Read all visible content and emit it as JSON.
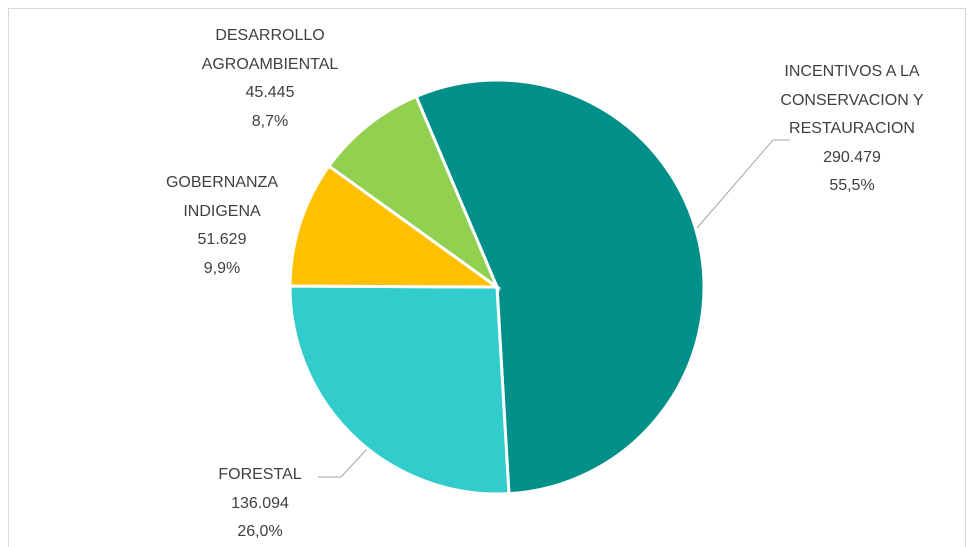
{
  "chart_data": {
    "type": "pie",
    "categories": [
      "INCENTIVOS A LA CONSERVACION Y RESTAURACION",
      "FORESTAL",
      "GOBERNANZA INDIGENA",
      "DESARROLLO AGROAMBIENTAL"
    ],
    "values": [
      290479,
      136094,
      51629,
      45445
    ],
    "value_labels": [
      "290.479",
      "136.094",
      "51.629",
      "45.445"
    ],
    "percents": [
      55.5,
      26.0,
      9.9,
      8.7
    ],
    "percent_labels": [
      "55,5%",
      "26,0%",
      "9,9%",
      "8,7%"
    ],
    "colors": [
      "#008f89",
      "#33cccc",
      "#ffc000",
      "#92d050"
    ]
  }
}
